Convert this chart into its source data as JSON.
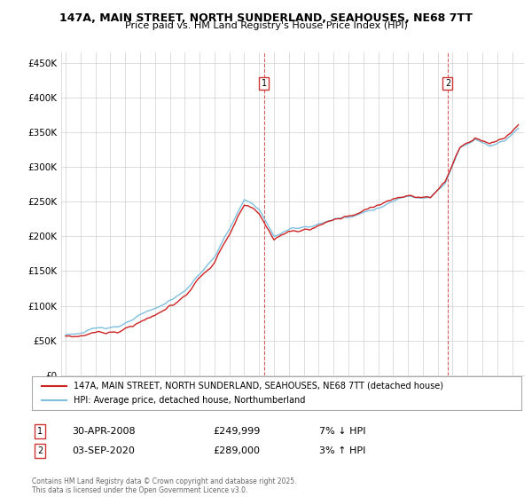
{
  "title": "147A, MAIN STREET, NORTH SUNDERLAND, SEAHOUSES, NE68 7TT",
  "subtitle": "Price paid vs. HM Land Registry's House Price Index (HPI)",
  "ylabel_ticks": [
    "£0",
    "£50K",
    "£100K",
    "£150K",
    "£200K",
    "£250K",
    "£300K",
    "£350K",
    "£400K",
    "£450K"
  ],
  "ytick_values": [
    0,
    50000,
    100000,
    150000,
    200000,
    250000,
    300000,
    350000,
    400000,
    450000
  ],
  "ylim": [
    0,
    465000
  ],
  "hpi_color": "#7fbfdf",
  "price_color": "#cc2222",
  "marker1_year": 2008.33,
  "marker2_year": 2020.67,
  "marker1_label": "30-APR-2008",
  "marker2_label": "03-SEP-2020",
  "marker1_price": "£249,999",
  "marker2_price": "£289,000",
  "marker1_hpi": "7% ↓ HPI",
  "marker2_hpi": "3% ↑ HPI",
  "legend_red": "147A, MAIN STREET, NORTH SUNDERLAND, SEAHOUSES, NE68 7TT (detached house)",
  "legend_blue": "HPI: Average price, detached house, Northumberland",
  "footnote": "Contains HM Land Registry data © Crown copyright and database right 2025.\nThis data is licensed under the Open Government Licence v3.0.",
  "bg_color": "#ffffff",
  "grid_color": "#d0d0d0",
  "hpi_anchors_x": [
    1995,
    1997,
    1999,
    2001,
    2003,
    2005,
    2007,
    2008.0,
    2009.0,
    2010,
    2012,
    2014,
    2016,
    2018,
    2019.5,
    2020.5,
    2021.5,
    2022.5,
    2023.5,
    2024.5,
    2025.4
  ],
  "hpi_anchors_y": [
    58000,
    65000,
    75000,
    92000,
    118000,
    168000,
    248000,
    235000,
    195000,
    205000,
    215000,
    228000,
    242000,
    258000,
    262000,
    280000,
    330000,
    345000,
    335000,
    345000,
    365000
  ],
  "price_offset": [
    -2000,
    -3000,
    -3500,
    -4000,
    -3000,
    -5000,
    -6000,
    -4000,
    -3000,
    -2000,
    -2000,
    -3000,
    -2000,
    -3000,
    -2000,
    -1000,
    -5000,
    -3000,
    -4000,
    -3000,
    -5000
  ]
}
